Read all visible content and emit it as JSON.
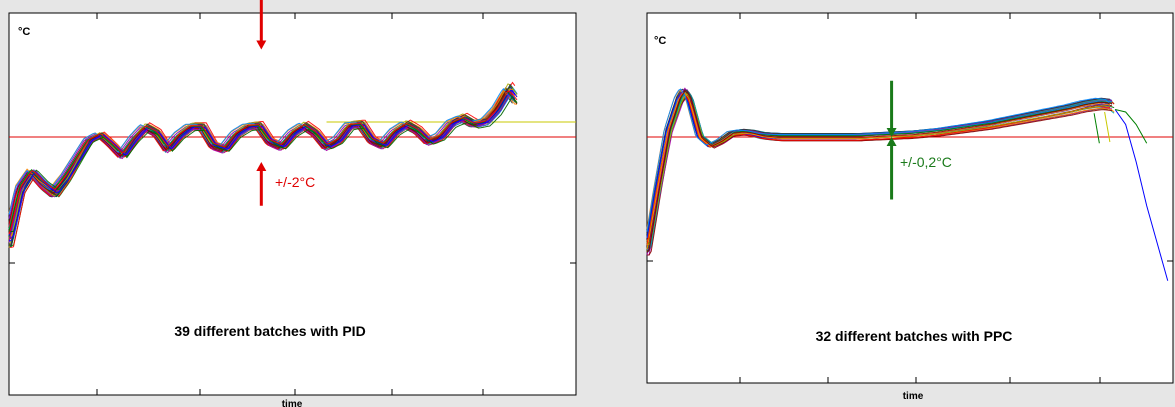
{
  "chart_data": [
    {
      "type": "line",
      "title": "39 different batches with PID",
      "ylabel": "°C",
      "xlabel": "time",
      "ylim": [
        -1,
        1.6
      ],
      "xlim": [
        0,
        1
      ],
      "grid": false,
      "setpoint": 0,
      "setpoint_color": "#e00000",
      "annotation": {
        "text": "+/-2°C",
        "x": 0.445,
        "color": "#e00000",
        "down_arrow_y": [
          1.1,
          0.7
        ],
        "up_arrow_y": [
          -0.55,
          -0.2
        ]
      },
      "series_count": 39,
      "base_curve": {
        "x": [
          0,
          0.02,
          0.04,
          0.06,
          0.08,
          0.1,
          0.12,
          0.14,
          0.16,
          0.18,
          0.2,
          0.22,
          0.24,
          0.26,
          0.28,
          0.3,
          0.32,
          0.34,
          0.36,
          0.38,
          0.4,
          0.42,
          0.44,
          0.46,
          0.48,
          0.5,
          0.52,
          0.54,
          0.56,
          0.58,
          0.6,
          0.62,
          0.64,
          0.66,
          0.68,
          0.7,
          0.72,
          0.74,
          0.76,
          0.78,
          0.8,
          0.82,
          0.84,
          0.86,
          0.88,
          0.9
        ],
        "y": [
          -0.82,
          -0.42,
          -0.28,
          -0.38,
          -0.45,
          -0.33,
          -0.18,
          -0.03,
          0.02,
          -0.06,
          -0.15,
          -0.02,
          0.08,
          0.03,
          -0.1,
          0.01,
          0.08,
          0.08,
          -0.07,
          -0.1,
          0.02,
          0.08,
          0.09,
          -0.04,
          -0.08,
          0.03,
          0.09,
          0.03,
          -0.08,
          -0.03,
          0.09,
          0.1,
          -0.03,
          -0.07,
          0.04,
          0.1,
          0.05,
          -0.04,
          0.0,
          0.11,
          0.15,
          0.1,
          0.12,
          0.22,
          0.38,
          0.26
        ]
      },
      "flat_trace": {
        "x": [
          0.56,
          1.0
        ],
        "y": [
          0.12,
          0.12
        ],
        "color": "#c8c800"
      },
      "colors": [
        "#0000ff",
        "#008000",
        "#ff0000",
        "#00aaaa",
        "#aa00aa",
        "#aaaa00",
        "#333333",
        "#ff8800",
        "#0088ff",
        "#880000",
        "#006600",
        "#7700cc"
      ]
    },
    {
      "type": "line",
      "title": "32 different batches with PPC",
      "ylabel": "°C",
      "xlabel": "time",
      "ylim": [
        -1,
        1.6
      ],
      "xlim": [
        0,
        1
      ],
      "grid": false,
      "setpoint": 0,
      "setpoint_color": "#e00000",
      "annotation": {
        "text": "+/-0,2°C",
        "x": 0.465,
        "color": "#1a7a1a",
        "down_arrow_y": [
          0.45,
          0.0
        ],
        "up_arrow_y": [
          -0.5,
          0.0
        ]
      },
      "series_count": 32,
      "base_curve": {
        "x": [
          0,
          0.02,
          0.04,
          0.06,
          0.07,
          0.08,
          0.1,
          0.12,
          0.14,
          0.16,
          0.18,
          0.2,
          0.22,
          0.25,
          0.3,
          0.35,
          0.4,
          0.45,
          0.5,
          0.55,
          0.6,
          0.65,
          0.7,
          0.75,
          0.8,
          0.83,
          0.86,
          0.88,
          0.89
        ],
        "y": [
          -0.88,
          -0.4,
          0.05,
          0.3,
          0.36,
          0.3,
          0.0,
          -0.07,
          -0.03,
          0.03,
          0.04,
          0.03,
          0.01,
          0.0,
          0.0,
          0.0,
          0.0,
          0.01,
          0.02,
          0.04,
          0.07,
          0.1,
          0.14,
          0.18,
          0.22,
          0.25,
          0.27,
          0.26,
          0.22
        ]
      },
      "tails": [
        {
          "x": [
            0.89,
            0.91,
            0.93,
            0.95,
            0.97,
            0.99
          ],
          "y": [
            0.22,
            0.1,
            -0.2,
            -0.55,
            -0.85,
            -1.15
          ],
          "color": "#0000ff"
        },
        {
          "x": [
            0.89,
            0.91,
            0.93,
            0.95
          ],
          "y": [
            0.22,
            0.2,
            0.1,
            -0.05
          ],
          "color": "#008000"
        },
        {
          "x": [
            0.87,
            0.88
          ],
          "y": [
            0.2,
            -0.04
          ],
          "color": "#c8c800"
        },
        {
          "x": [
            0.85,
            0.86
          ],
          "y": [
            0.19,
            -0.05
          ],
          "color": "#008000"
        }
      ],
      "colors": [
        "#0000ff",
        "#008000",
        "#ff0000",
        "#00aaaa",
        "#aa00aa",
        "#aaaa00",
        "#333333",
        "#ff8800",
        "#0088ff",
        "#880000",
        "#006600"
      ]
    }
  ]
}
